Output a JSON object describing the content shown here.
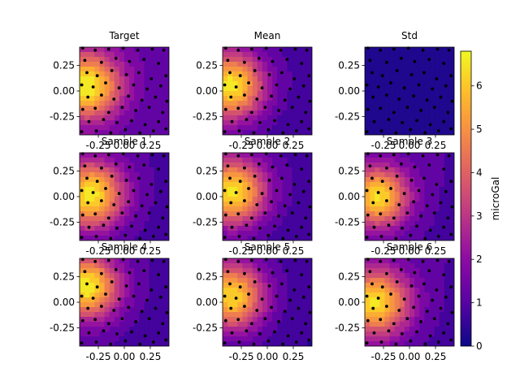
{
  "chart_data": {
    "type": "heatmap",
    "panels": [
      {
        "title": "Target",
        "peak": [
          -0.36,
          0.05
        ],
        "maxv": 6.8,
        "floor": 1.2,
        "spread": 0.55
      },
      {
        "title": "Mean",
        "peak": [
          -0.36,
          0.05
        ],
        "maxv": 6.6,
        "floor": 0.8,
        "spread": 0.55
      },
      {
        "title": "Std",
        "uniform": 0.15
      },
      {
        "title": "Sample 1",
        "peak": [
          -0.33,
          0.02
        ],
        "maxv": 6.6,
        "floor": 0.9,
        "spread": 0.55
      },
      {
        "title": "Sample 2",
        "peak": [
          -0.34,
          0.05
        ],
        "maxv": 6.5,
        "floor": 0.8,
        "spread": 0.55
      },
      {
        "title": "Sample 3",
        "peak": [
          -0.31,
          0.0
        ],
        "maxv": 6.4,
        "floor": 1.0,
        "spread": 0.5
      },
      {
        "title": "Sample 4",
        "peak": [
          -0.36,
          0.15
        ],
        "maxv": 6.7,
        "floor": 0.9,
        "spread": 0.52
      },
      {
        "title": "Sample 5",
        "peak": [
          -0.35,
          0.06
        ],
        "maxv": 6.3,
        "floor": 0.7,
        "spread": 0.55
      },
      {
        "title": "Sample 6",
        "peak": [
          -0.33,
          0.0
        ],
        "maxv": 6.5,
        "floor": 1.0,
        "spread": 0.55
      }
    ],
    "x_ticks": [
      "-0.25",
      "0.00",
      "0.25"
    ],
    "x_tick_values": [
      -0.25,
      0.0,
      0.25
    ],
    "y_ticks": [
      "0.25",
      "0.00",
      "-0.25"
    ],
    "y_tick_values": [
      0.25,
      0.0,
      -0.25
    ],
    "xlim": [
      -0.43,
      0.43
    ],
    "ylim": [
      -0.43,
      0.43
    ],
    "colorbar": {
      "label": "microGal",
      "ticks": [
        "0",
        "1",
        "2",
        "3",
        "4",
        "5",
        "6"
      ],
      "range": [
        0,
        6.8
      ],
      "colormap": "plasma"
    },
    "stations": [
      [
        -0.4,
        0.42
      ],
      [
        -0.28,
        0.4
      ],
      [
        -0.15,
        0.41
      ],
      [
        -0.01,
        0.42
      ],
      [
        0.13,
        0.4
      ],
      [
        0.27,
        0.41
      ],
      [
        0.38,
        0.4
      ],
      [
        -0.38,
        0.3
      ],
      [
        -0.22,
        0.28
      ],
      [
        -0.08,
        0.32
      ],
      [
        0.05,
        0.29
      ],
      [
        0.19,
        0.31
      ],
      [
        0.33,
        0.27
      ],
      [
        -0.36,
        0.18
      ],
      [
        -0.26,
        0.15
      ],
      [
        -0.12,
        0.2
      ],
      [
        0.02,
        0.16
      ],
      [
        0.14,
        0.18
      ],
      [
        0.26,
        0.12
      ],
      [
        0.4,
        0.15
      ],
      [
        -0.41,
        0.06
      ],
      [
        -0.3,
        0.04
      ],
      [
        -0.18,
        0.08
      ],
      [
        -0.05,
        0.03
      ],
      [
        0.09,
        0.06
      ],
      [
        0.22,
        0.02
      ],
      [
        0.35,
        0.05
      ],
      [
        -0.35,
        -0.06
      ],
      [
        -0.22,
        -0.04
      ],
      [
        -0.1,
        -0.08
      ],
      [
        0.04,
        -0.05
      ],
      [
        0.17,
        -0.09
      ],
      [
        0.3,
        -0.06
      ],
      [
        0.41,
        -0.1
      ],
      [
        -0.4,
        -0.18
      ],
      [
        -0.28,
        -0.17
      ],
      [
        -0.15,
        -0.21
      ],
      [
        -0.02,
        -0.16
      ],
      [
        0.11,
        -0.19
      ],
      [
        0.24,
        -0.16
      ],
      [
        0.37,
        -0.21
      ],
      [
        -0.34,
        -0.3
      ],
      [
        -0.2,
        -0.28
      ],
      [
        -0.07,
        -0.31
      ],
      [
        0.07,
        -0.29
      ],
      [
        0.2,
        -0.33
      ],
      [
        0.33,
        -0.3
      ],
      [
        -0.41,
        -0.4
      ],
      [
        -0.27,
        -0.39
      ],
      [
        -0.13,
        -0.41
      ],
      [
        0.01,
        -0.38
      ],
      [
        0.15,
        -0.41
      ],
      [
        0.28,
        -0.39
      ],
      [
        0.4,
        -0.37
      ]
    ]
  }
}
